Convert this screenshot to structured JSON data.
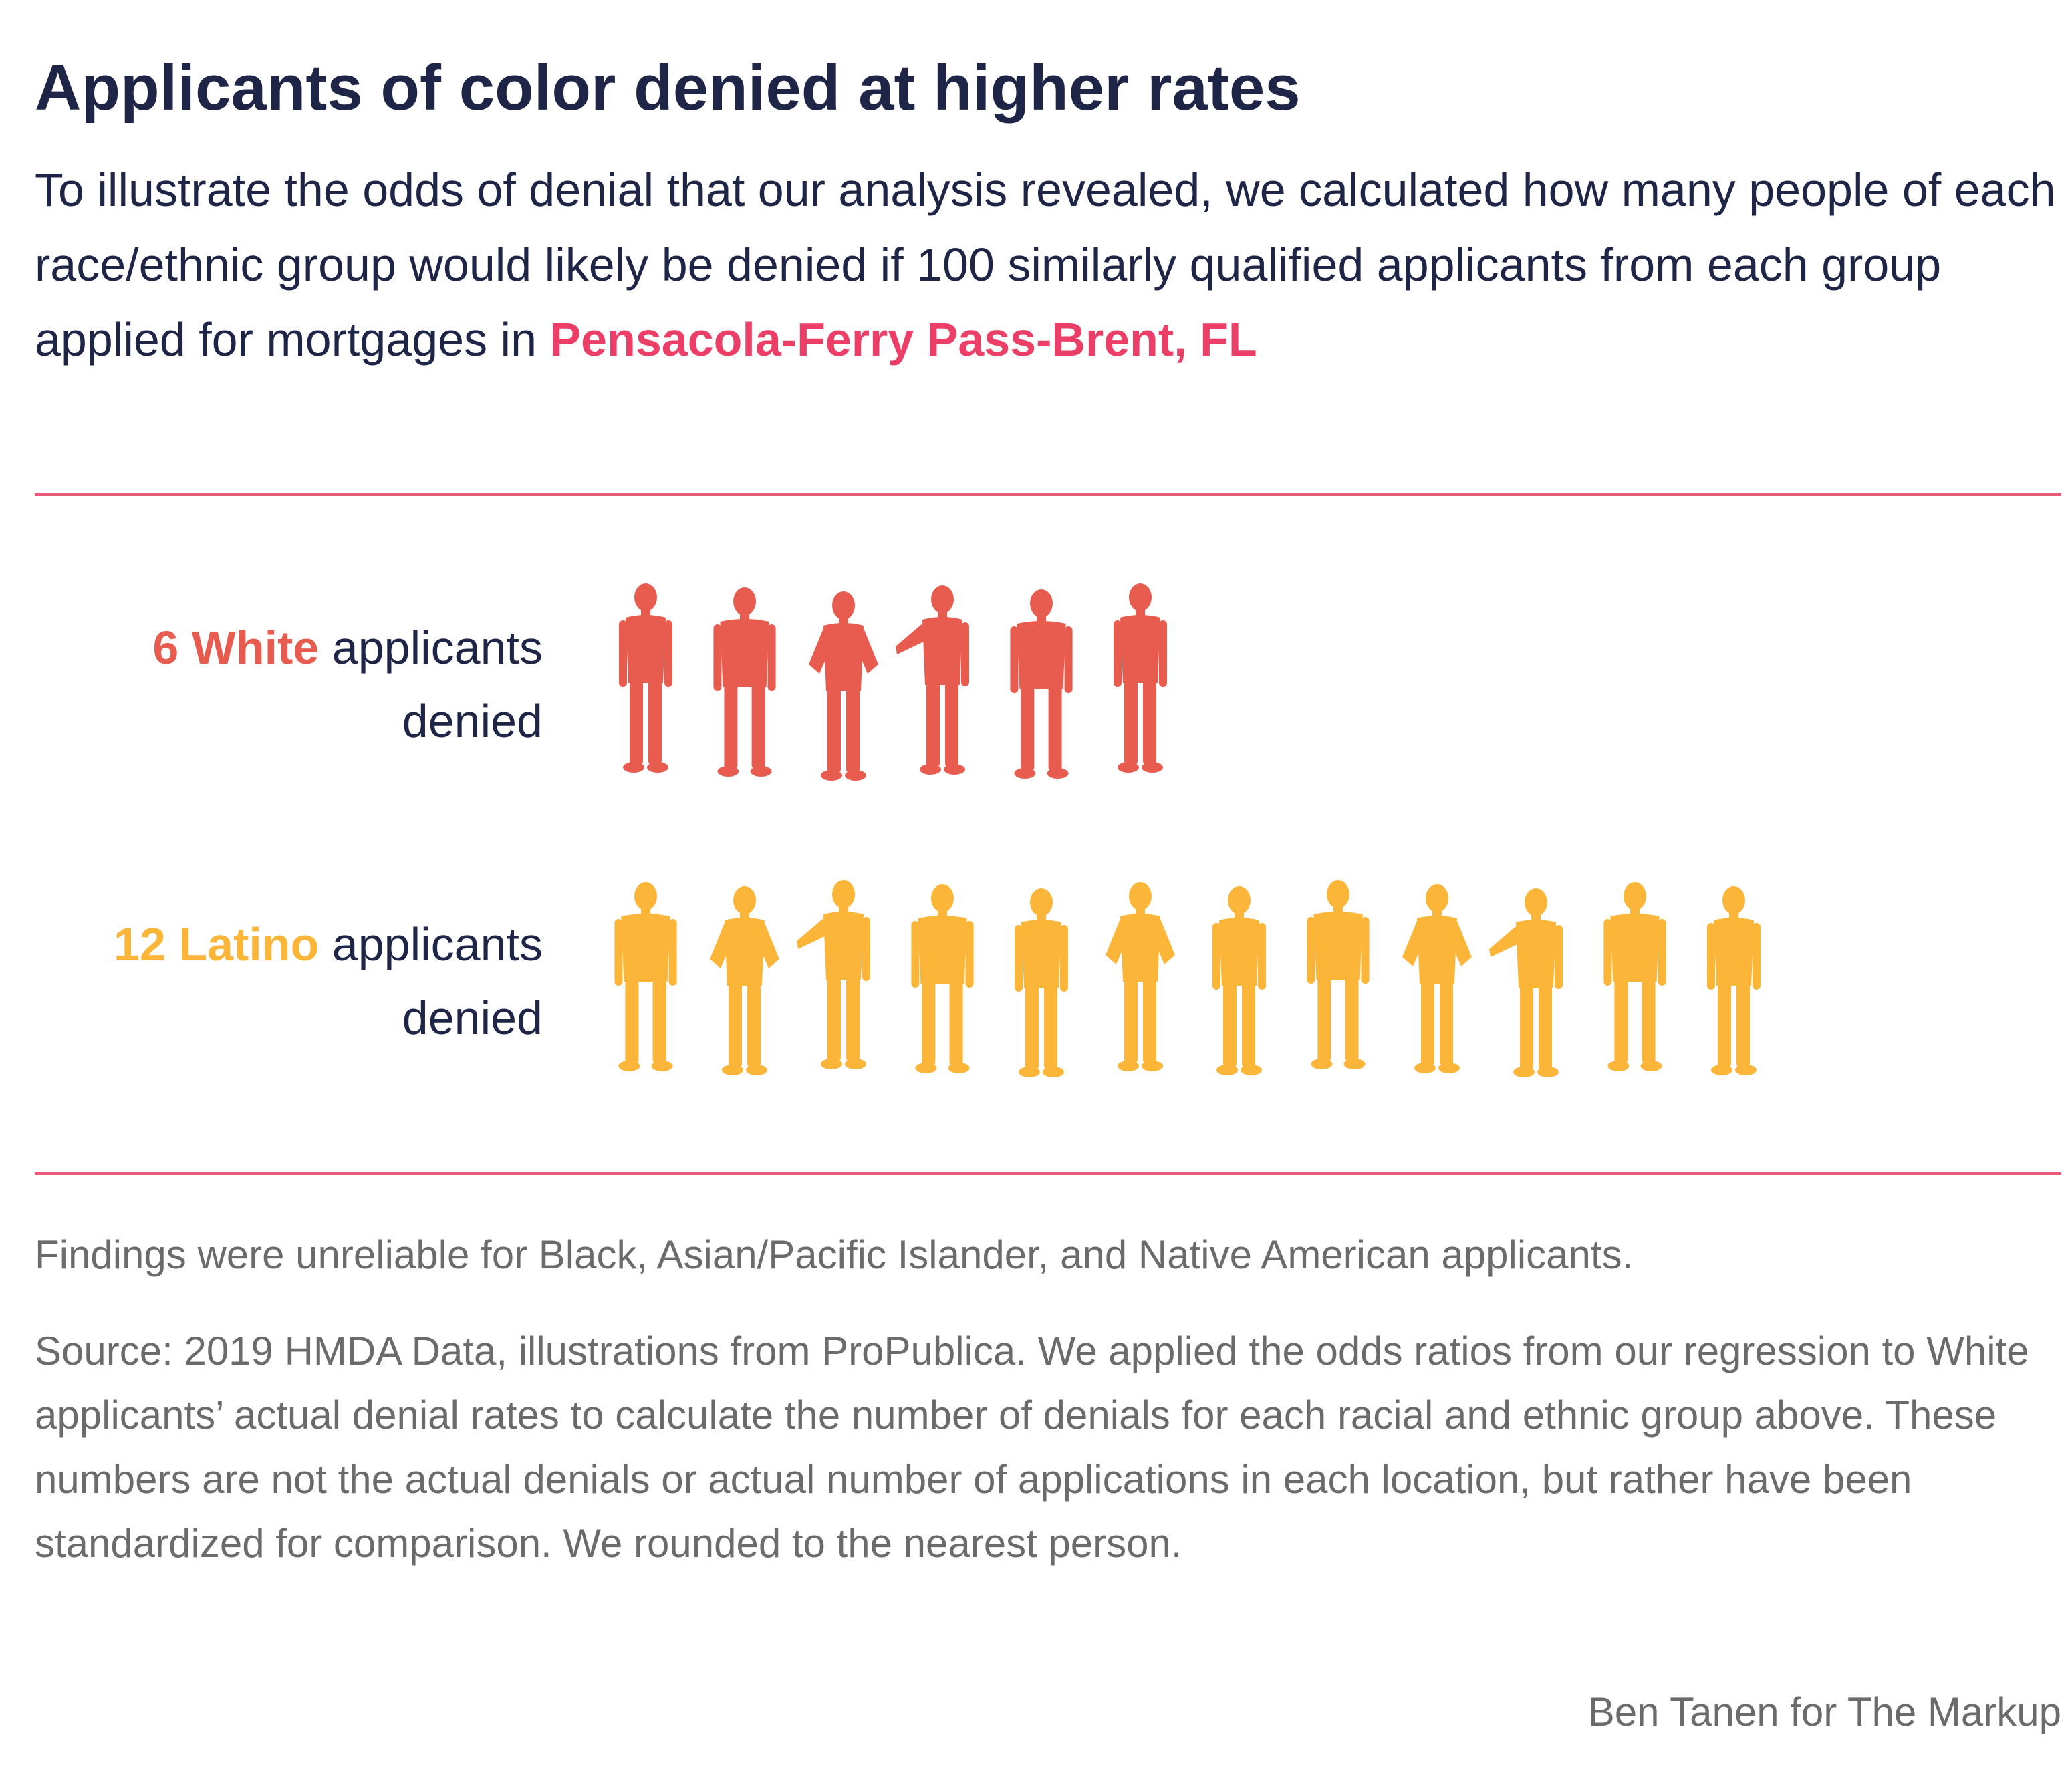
{
  "title": "Applicants of color denied at higher rates",
  "subtitle": {
    "text": "To illustrate the odds of denial that our analysis revealed, we calculated how many people of each race/ethnic group would likely be denied if 100 similarly qualified applicants from each group applied for mortgages in ",
    "location": "Pensacola-Ferry Pass-Brent, FL"
  },
  "colors": {
    "title": "#1e2546",
    "accent": "#ec3f67",
    "rule": "#e85a78",
    "white_group": "#e85c4f",
    "latino_group": "#fbb63a",
    "note": "#6b6b6b"
  },
  "chart_data": {
    "type": "pictograph",
    "unit": "people denied per 100 similarly qualified applicants",
    "rows": [
      {
        "count_label": "6 White",
        "suffix": "applicants",
        "line2": "denied",
        "value": 6,
        "color": "#e85c4f"
      },
      {
        "count_label": "12 Latino",
        "suffix": "applicants",
        "line2": "denied",
        "value": 12,
        "color": "#fbb63a"
      }
    ]
  },
  "notes": {
    "unreliable": "Findings were unreliable for Black, Asian/Pacific Islander, and Native American applicants.",
    "source": "Source: 2019 HMDA Data, illustrations from ProPublica. We applied the odds ratios from our regression to White applicants’ actual denial rates to calculate the number of denials for each racial and ethnic group above. These numbers are not the actual denials or actual number of applications in each location, but rather have been standardized for comparison. We rounded to the nearest person."
  },
  "credit": "Ben Tanen for The Markup"
}
